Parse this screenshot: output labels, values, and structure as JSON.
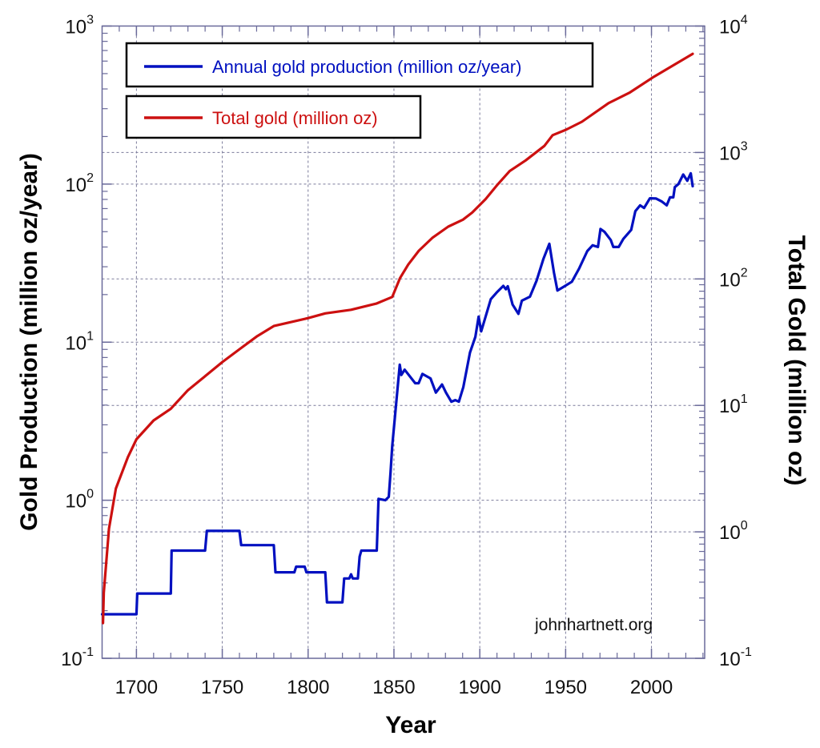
{
  "chart_data": {
    "type": "line",
    "xlabel": "Year",
    "ylabel_left": "Gold Production (million oz/year)",
    "ylabel_right": "Total Gold (million oz)",
    "xlim": [
      1680,
      2031
    ],
    "ylim_left": [
      0.1,
      1000
    ],
    "ylim_right": [
      0.1,
      10000
    ],
    "yscale": "log",
    "grid": true,
    "x_ticks": [
      "1700",
      "1750",
      "1800",
      "1850",
      "1900",
      "1950",
      "2000"
    ],
    "x_tick_values": [
      1700,
      1750,
      1800,
      1850,
      1900,
      1950,
      2000
    ],
    "left_ticks": [
      {
        "base": "10",
        "exp": "-1"
      },
      {
        "base": "10",
        "exp": "0"
      },
      {
        "base": "10",
        "exp": "1"
      },
      {
        "base": "10",
        "exp": "2"
      },
      {
        "base": "10",
        "exp": "3"
      }
    ],
    "right_ticks": [
      {
        "base": "10",
        "exp": "-1"
      },
      {
        "base": "10",
        "exp": "0"
      },
      {
        "base": "10",
        "exp": "1"
      },
      {
        "base": "10",
        "exp": "2"
      },
      {
        "base": "10",
        "exp": "3"
      },
      {
        "base": "10",
        "exp": "4"
      }
    ],
    "legend_position": "top-left",
    "annotation": "johnhartnett.org",
    "series": [
      {
        "name": "Annual gold production (million oz/year)",
        "axis": "left",
        "color": "#0010c0",
        "points": [
          [
            1680,
            0.19
          ],
          [
            1700,
            0.19
          ],
          [
            1700.5,
            0.257
          ],
          [
            1720,
            0.257
          ],
          [
            1720.5,
            0.48
          ],
          [
            1740,
            0.48
          ],
          [
            1741,
            0.64
          ],
          [
            1760,
            0.64
          ],
          [
            1761,
            0.52
          ],
          [
            1780,
            0.52
          ],
          [
            1781,
            0.35
          ],
          [
            1792,
            0.35
          ],
          [
            1793,
            0.38
          ],
          [
            1798,
            0.38
          ],
          [
            1799,
            0.35
          ],
          [
            1810,
            0.35
          ],
          [
            1811,
            0.226
          ],
          [
            1820,
            0.226
          ],
          [
            1821,
            0.32
          ],
          [
            1824,
            0.32
          ],
          [
            1825,
            0.34
          ],
          [
            1826,
            0.32
          ],
          [
            1829,
            0.32
          ],
          [
            1830,
            0.44
          ],
          [
            1831,
            0.48
          ],
          [
            1840,
            0.48
          ],
          [
            1841,
            1.02
          ],
          [
            1845,
            1.0
          ],
          [
            1847,
            1.05
          ],
          [
            1848,
            1.5
          ],
          [
            1849,
            2.2
          ],
          [
            1850.7,
            3.5
          ],
          [
            1853.4,
            7.2
          ],
          [
            1854.3,
            6.2
          ],
          [
            1856.2,
            6.7
          ],
          [
            1862.4,
            5.5
          ],
          [
            1864.4,
            5.5
          ],
          [
            1866.6,
            6.3
          ],
          [
            1871.3,
            5.9
          ],
          [
            1874.4,
            4.8
          ],
          [
            1878,
            5.4
          ],
          [
            1880.3,
            4.8
          ],
          [
            1883.4,
            4.2
          ],
          [
            1885.7,
            4.3
          ],
          [
            1887.8,
            4.2
          ],
          [
            1890.4,
            5.2
          ],
          [
            1894.3,
            8.6
          ],
          [
            1897.4,
            10.8
          ],
          [
            1899.3,
            14.5
          ],
          [
            1900.8,
            11.7
          ],
          [
            1906.4,
            18.7
          ],
          [
            1909.8,
            20.6
          ],
          [
            1913.7,
            22.7
          ],
          [
            1915.2,
            21.6
          ],
          [
            1916.3,
            22.6
          ],
          [
            1919.1,
            17.3
          ],
          [
            1922.5,
            15.1
          ],
          [
            1924.5,
            18.3
          ],
          [
            1929.2,
            19.4
          ],
          [
            1933.1,
            24.5
          ],
          [
            1937,
            33.5
          ],
          [
            1940.5,
            41.9
          ],
          [
            1943.2,
            27.5
          ],
          [
            1945.2,
            21.2
          ],
          [
            1949.4,
            22.6
          ],
          [
            1953.6,
            24.1
          ],
          [
            1957.9,
            29.3
          ],
          [
            1962.6,
            37.7
          ],
          [
            1965.7,
            41
          ],
          [
            1968.8,
            40
          ],
          [
            1970.3,
            52
          ],
          [
            1972.7,
            49.8
          ],
          [
            1976.3,
            44.3
          ],
          [
            1977.8,
            40
          ],
          [
            1980.9,
            40
          ],
          [
            1983.6,
            45
          ],
          [
            1988.2,
            51.3
          ],
          [
            1990.6,
            67.4
          ],
          [
            1993.4,
            73.4
          ],
          [
            1995.7,
            70.6
          ],
          [
            1999.1,
            81.3
          ],
          [
            2002.7,
            81
          ],
          [
            2006.1,
            77.5
          ],
          [
            2008.9,
            73.4
          ],
          [
            2010.8,
            82.5
          ],
          [
            2012.7,
            82.5
          ],
          [
            2013.6,
            95.7
          ],
          [
            2015.7,
            100
          ],
          [
            2018.5,
            115
          ],
          [
            2020.9,
            105
          ],
          [
            2022.9,
            117
          ],
          [
            2024,
            97
          ]
        ]
      },
      {
        "name": "Total gold (million oz)",
        "axis": "right",
        "color": "#cc1010",
        "points": [
          [
            1680.5,
            0.19
          ],
          [
            1681,
            0.33
          ],
          [
            1684,
            1.06
          ],
          [
            1688,
            2.2
          ],
          [
            1695,
            3.9
          ],
          [
            1700,
            5.4
          ],
          [
            1710,
            7.6
          ],
          [
            1720,
            9.4
          ],
          [
            1730,
            13.2
          ],
          [
            1740,
            17
          ],
          [
            1750,
            22
          ],
          [
            1760,
            27.8
          ],
          [
            1770,
            35
          ],
          [
            1780,
            42.4
          ],
          [
            1800,
            49
          ],
          [
            1810,
            53.4
          ],
          [
            1825,
            57
          ],
          [
            1840,
            64
          ],
          [
            1849,
            72
          ],
          [
            1853.6,
            102
          ],
          [
            1858.3,
            130
          ],
          [
            1864.5,
            167
          ],
          [
            1872.3,
            211
          ],
          [
            1881.6,
            259
          ],
          [
            1890.2,
            294
          ],
          [
            1895.6,
            335
          ],
          [
            1903.4,
            428
          ],
          [
            1910.4,
            558
          ],
          [
            1917.4,
            713
          ],
          [
            1926.7,
            865
          ],
          [
            1937.6,
            1127
          ],
          [
            1942.4,
            1371
          ],
          [
            1950.2,
            1514
          ],
          [
            1959.5,
            1750
          ],
          [
            1975,
            2455
          ],
          [
            1987.5,
            2985
          ],
          [
            2001.5,
            3980
          ],
          [
            2024,
            6030
          ]
        ]
      }
    ]
  }
}
